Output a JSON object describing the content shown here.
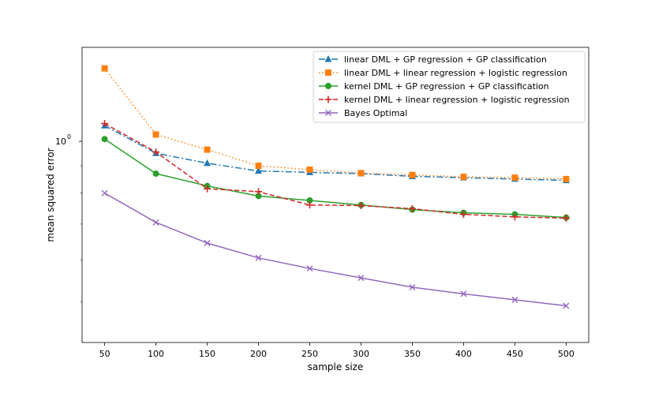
{
  "chart_data": {
    "type": "line",
    "xlabel": "sample size",
    "ylabel": "mean squared error",
    "yscale": "log",
    "xlim": [
      28,
      522
    ],
    "ylim": [
      0.42,
      1.5
    ],
    "x": [
      50,
      100,
      150,
      200,
      250,
      300,
      350,
      400,
      450,
      500
    ],
    "x_ticks": [
      "50",
      "100",
      "150",
      "200",
      "250",
      "300",
      "350",
      "400",
      "450",
      "500"
    ],
    "y_ticks": [
      {
        "value": 1.0,
        "label": "10",
        "exponent": "0"
      }
    ],
    "y_minor_ticks": [
      0.5,
      0.6,
      0.7,
      0.8,
      0.9
    ],
    "grid": false,
    "legend_position": "top-right",
    "series": [
      {
        "name": "linear DML + GP regression + GP classification",
        "values": [
          1.07,
          0.95,
          0.91,
          0.88,
          0.875,
          0.87,
          0.86,
          0.855,
          0.85,
          0.845
        ],
        "color": "#1f77b4",
        "linestyle": "dashdot",
        "marker": "triangle"
      },
      {
        "name": "linear DML + linear regression + logistic regression",
        "values": [
          1.37,
          1.03,
          0.965,
          0.9,
          0.885,
          0.872,
          0.865,
          0.858,
          0.855,
          0.85
        ],
        "color": "#ff7f0e",
        "linestyle": "dotted",
        "marker": "square"
      },
      {
        "name": "kernel DML + GP regression + GP classification",
        "values": [
          1.01,
          0.87,
          0.825,
          0.79,
          0.775,
          0.76,
          0.745,
          0.735,
          0.73,
          0.72
        ],
        "color": "#2ca02c",
        "linestyle": "solid",
        "marker": "circle"
      },
      {
        "name": "kernel DML + linear regression + logistic regression",
        "values": [
          1.08,
          0.955,
          0.815,
          0.805,
          0.76,
          0.758,
          0.748,
          0.73,
          0.722,
          0.718
        ],
        "color": "#d62728",
        "linestyle": "dashed",
        "marker": "plus"
      },
      {
        "name": "Bayes Optimal",
        "values": [
          0.8,
          0.705,
          0.645,
          0.605,
          0.578,
          0.555,
          0.533,
          0.518,
          0.505,
          0.492
        ],
        "color": "#9467bd",
        "linestyle": "solid",
        "marker": "x"
      }
    ]
  }
}
